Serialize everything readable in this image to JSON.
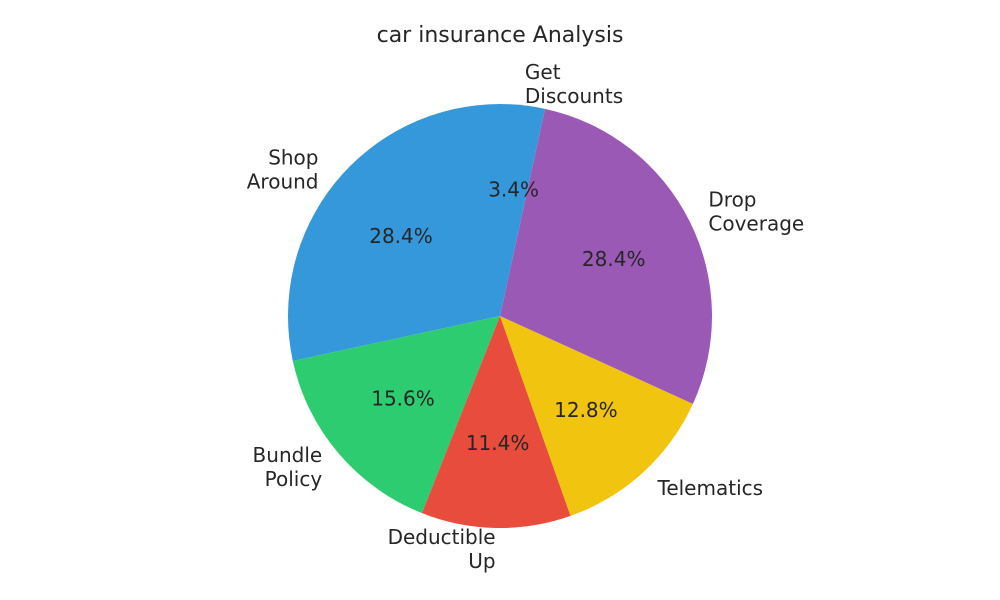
{
  "chart_data": {
    "type": "pie",
    "title": "car insurance Analysis",
    "slices": [
      {
        "label": "Shop Around",
        "lines": [
          "Shop",
          "Around"
        ],
        "value": 28.4,
        "pct_label": "28.4%",
        "color": "#3498db"
      },
      {
        "label": "Bundle Policy",
        "lines": [
          "Bundle",
          "Policy"
        ],
        "value": 15.6,
        "pct_label": "15.6%",
        "color": "#2ecc71"
      },
      {
        "label": "Deductible Up",
        "lines": [
          "Deductible",
          "Up"
        ],
        "value": 11.4,
        "pct_label": "11.4%",
        "color": "#e74c3c"
      },
      {
        "label": "Telematics",
        "lines": [
          "Telematics"
        ],
        "value": 12.8,
        "pct_label": "12.8%",
        "color": "#f1c40f"
      },
      {
        "label": "Drop Coverage",
        "lines": [
          "Drop",
          "Coverage"
        ],
        "value": 28.4,
        "pct_label": "28.4%",
        "color": "#9b59b6"
      },
      {
        "label": "Get Discounts",
        "lines": [
          "Get",
          "Discounts"
        ],
        "value": 3.4,
        "pct_label": "3.4%",
        "color": "#3498db"
      }
    ],
    "start_angle": 90,
    "direction": "counterclockwise",
    "label_distance": 1.1,
    "pct_distance": 0.6,
    "legend": "none",
    "grid": "off",
    "text_color": "#262626",
    "background_color": "#ffffff"
  }
}
